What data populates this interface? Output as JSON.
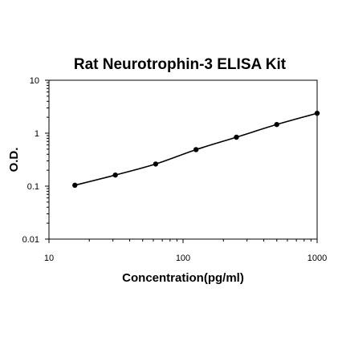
{
  "chart_data": {
    "type": "scatter",
    "title": "Rat Neurotrophin-3 ELISA Kit",
    "xlabel": "Concentration(pg/ml)",
    "ylabel": "O.D.",
    "x_scale": "log",
    "y_scale": "log",
    "xlim": [
      10,
      1000
    ],
    "ylim": [
      0.01,
      10
    ],
    "x_ticks": [
      "10",
      "100",
      "1000"
    ],
    "y_ticks": [
      "0.01",
      "0.1",
      "1",
      "10"
    ],
    "grid": false,
    "series": [
      {
        "x": [
          15.6,
          31.25,
          62.5,
          125,
          250,
          500,
          1000
        ],
        "y": [
          0.104,
          0.162,
          0.262,
          0.49,
          0.84,
          1.46,
          2.38
        ],
        "marker": "circle",
        "line": "smooth fit",
        "color": "#000000"
      }
    ]
  }
}
